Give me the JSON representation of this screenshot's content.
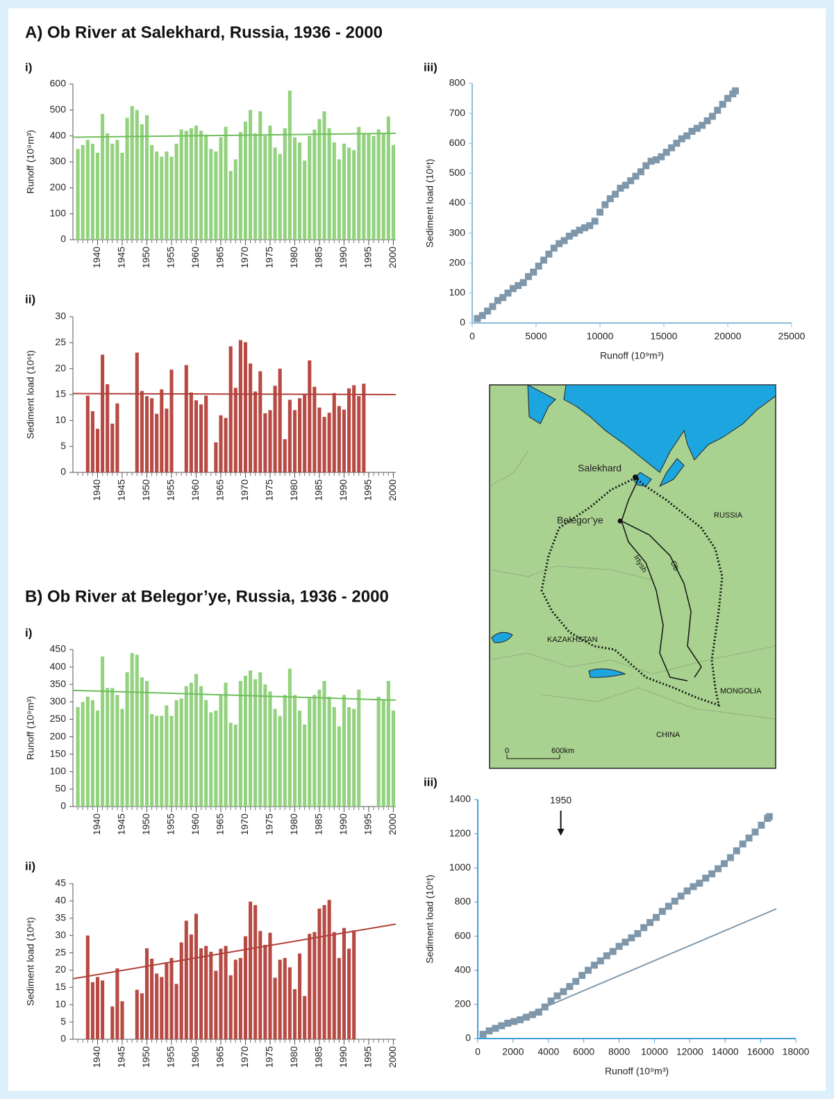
{
  "sections": [
    "A) Ob River at Salekhard, Russia, 1936 - 2000",
    "B) Ob River at Belegor’ye, Russia, 1936 - 2000"
  ],
  "chart_data": [
    {
      "type": "bar",
      "title": "i)",
      "ylabel": "Runoff (10⁹m³)",
      "color": "#93d27f",
      "trend_color": "#6fbf5c",
      "x": [
        1936,
        1937,
        1938,
        1939,
        1940,
        1941,
        1942,
        1943,
        1944,
        1945,
        1946,
        1947,
        1948,
        1949,
        1950,
        1951,
        1952,
        1953,
        1954,
        1955,
        1956,
        1957,
        1958,
        1959,
        1960,
        1961,
        1962,
        1963,
        1964,
        1965,
        1966,
        1967,
        1968,
        1969,
        1970,
        1971,
        1972,
        1973,
        1974,
        1975,
        1976,
        1977,
        1978,
        1979,
        1980,
        1981,
        1982,
        1983,
        1984,
        1985,
        1986,
        1987,
        1988,
        1989,
        1990,
        1991,
        1992,
        1993,
        1994,
        1995,
        1996,
        1997,
        1998,
        1999,
        2000
      ],
      "values": [
        350,
        365,
        385,
        370,
        335,
        485,
        410,
        370,
        385,
        335,
        470,
        515,
        500,
        445,
        480,
        365,
        340,
        320,
        340,
        320,
        370,
        425,
        420,
        430,
        440,
        420,
        405,
        350,
        340,
        395,
        435,
        265,
        310,
        415,
        455,
        500,
        410,
        495,
        400,
        440,
        355,
        330,
        430,
        575,
        395,
        375,
        305,
        400,
        425,
        465,
        495,
        430,
        375,
        310,
        370,
        355,
        345,
        435,
        410,
        410,
        400,
        425,
        410,
        475,
        365
      ],
      "trend": {
        "x": [
          1935,
          2000.5
        ],
        "values": [
          395,
          410
        ]
      },
      "xlim": [
        1935,
        2000.5
      ],
      "xticks": [
        1940,
        1945,
        1950,
        1955,
        1960,
        1965,
        1970,
        1975,
        1980,
        1985,
        1990,
        1995,
        2000
      ],
      "ylim": [
        0,
        600
      ],
      "yticks": [
        0,
        100,
        200,
        300,
        400,
        500,
        600
      ]
    },
    {
      "type": "bar",
      "title": "ii)",
      "ylabel": "Sediment load (10⁶t)",
      "color": "#b84a44",
      "trend_color": "#b0403a",
      "x": [
        1936,
        1937,
        1938,
        1939,
        1940,
        1941,
        1942,
        1943,
        1944,
        1945,
        1946,
        1947,
        1948,
        1949,
        1950,
        1951,
        1952,
        1953,
        1954,
        1955,
        1956,
        1957,
        1958,
        1959,
        1960,
        1961,
        1962,
        1963,
        1964,
        1965,
        1966,
        1967,
        1968,
        1969,
        1970,
        1971,
        1972,
        1973,
        1974,
        1975,
        1976,
        1977,
        1978,
        1979,
        1980,
        1981,
        1982,
        1983,
        1984,
        1985,
        1986,
        1987,
        1988,
        1989,
        1990,
        1991,
        1992,
        1993,
        1994,
        1995,
        1996,
        1997,
        1998,
        1999,
        2000
      ],
      "values": [
        null,
        null,
        14.8,
        11.8,
        8.4,
        22.7,
        17.0,
        9.4,
        13.3,
        null,
        null,
        null,
        23.1,
        15.7,
        14.7,
        14.3,
        11.3,
        16.0,
        12.3,
        19.8,
        null,
        null,
        20.7,
        15.4,
        13.9,
        13.1,
        14.8,
        null,
        5.8,
        11.0,
        10.5,
        24.3,
        16.3,
        25.5,
        25.1,
        21.0,
        15.6,
        19.5,
        11.4,
        12.0,
        16.7,
        20.0,
        6.4,
        14.0,
        12.0,
        14.3,
        15.0,
        21.6,
        16.5,
        12.5,
        10.7,
        11.5,
        15.3,
        12.8,
        12.1,
        16.2,
        16.8,
        14.7,
        17.1,
        null,
        null,
        null,
        null,
        null,
        null
      ],
      "trend": {
        "x": [
          1935,
          2000.5
        ],
        "values": [
          15.2,
          15.0
        ]
      },
      "xlim": [
        1935,
        2000.5
      ],
      "xticks": [
        1940,
        1945,
        1950,
        1955,
        1960,
        1965,
        1970,
        1975,
        1980,
        1985,
        1990,
        1995,
        2000
      ],
      "ylim": [
        0,
        30
      ],
      "yticks": [
        0,
        5,
        10,
        15,
        20,
        25,
        30
      ]
    },
    {
      "type": "scatter",
      "title": "iii)",
      "xlabel": "Runoff (10⁹m³)",
      "ylabel": "Sediment load (10⁶t)",
      "color": "#7f97aa",
      "axis_color": "#8cbcdc",
      "x": [
        400,
        800,
        1200,
        1600,
        2000,
        2400,
        2800,
        3200,
        3600,
        4000,
        4400,
        4800,
        5200,
        5600,
        6000,
        6400,
        6800,
        7200,
        7600,
        8000,
        8400,
        8800,
        9200,
        9600,
        10000,
        10400,
        10800,
        11200,
        11600,
        12000,
        12400,
        12800,
        13200,
        13600,
        14000,
        14400,
        14800,
        15200,
        15600,
        16000,
        16400,
        16800,
        17200,
        17600,
        18000,
        18400,
        18800,
        19200,
        19600,
        20000,
        20400,
        20600
      ],
      "values": [
        15,
        25,
        40,
        55,
        75,
        85,
        100,
        115,
        125,
        135,
        155,
        170,
        190,
        210,
        230,
        250,
        265,
        275,
        290,
        300,
        310,
        318,
        325,
        340,
        370,
        395,
        415,
        430,
        450,
        460,
        475,
        490,
        505,
        525,
        540,
        545,
        555,
        570,
        585,
        600,
        615,
        625,
        640,
        650,
        660,
        675,
        690,
        710,
        730,
        750,
        765,
        775
      ],
      "xlim": [
        0,
        25000
      ],
      "xticks": [
        0,
        5000,
        10000,
        15000,
        20000,
        25000
      ],
      "ylim": [
        0,
        800
      ],
      "yticks": [
        0,
        100,
        200,
        300,
        400,
        500,
        600,
        700,
        800
      ]
    },
    {
      "type": "bar",
      "title": "i)",
      "ylabel": "Runoff (10⁹m³)",
      "color": "#93d27f",
      "trend_color": "#6fbf5c",
      "x": [
        1936,
        1937,
        1938,
        1939,
        1940,
        1941,
        1942,
        1943,
        1944,
        1945,
        1946,
        1947,
        1948,
        1949,
        1950,
        1951,
        1952,
        1953,
        1954,
        1955,
        1956,
        1957,
        1958,
        1959,
        1960,
        1961,
        1962,
        1963,
        1964,
        1965,
        1966,
        1967,
        1968,
        1969,
        1970,
        1971,
        1972,
        1973,
        1974,
        1975,
        1976,
        1977,
        1978,
        1979,
        1980,
        1981,
        1982,
        1983,
        1984,
        1985,
        1986,
        1987,
        1988,
        1989,
        1990,
        1991,
        1992,
        1993,
        1994,
        1995,
        1996,
        1997,
        1998,
        1999,
        2000
      ],
      "values": [
        285,
        300,
        315,
        305,
        275,
        430,
        340,
        340,
        320,
        280,
        385,
        440,
        435,
        370,
        360,
        265,
        260,
        260,
        290,
        260,
        305,
        310,
        345,
        355,
        380,
        345,
        305,
        270,
        275,
        320,
        355,
        240,
        235,
        360,
        375,
        390,
        365,
        385,
        350,
        330,
        280,
        260,
        320,
        395,
        320,
        275,
        235,
        310,
        320,
        335,
        360,
        315,
        285,
        230,
        320,
        285,
        280,
        335,
        null,
        null,
        null,
        315,
        305,
        360,
        275
      ],
      "trend": {
        "x": [
          1935,
          2000.5
        ],
        "values": [
          333,
          305
        ]
      },
      "xlim": [
        1935,
        2000.5
      ],
      "xticks": [
        1940,
        1945,
        1950,
        1955,
        1960,
        1965,
        1970,
        1975,
        1980,
        1985,
        1990,
        1995,
        2000
      ],
      "ylim": [
        0,
        450
      ],
      "yticks": [
        0,
        50,
        100,
        150,
        200,
        250,
        300,
        350,
        400,
        450
      ]
    },
    {
      "type": "bar",
      "title": "ii)",
      "ylabel": "Sediment load (10⁶t)",
      "color": "#b84a44",
      "trend_color": "#b0403a",
      "x": [
        1936,
        1937,
        1938,
        1939,
        1940,
        1941,
        1942,
        1943,
        1944,
        1945,
        1946,
        1947,
        1948,
        1949,
        1950,
        1951,
        1952,
        1953,
        1954,
        1955,
        1956,
        1957,
        1958,
        1959,
        1960,
        1961,
        1962,
        1963,
        1964,
        1965,
        1966,
        1967,
        1968,
        1969,
        1970,
        1971,
        1972,
        1973,
        1974,
        1975,
        1976,
        1977,
        1978,
        1979,
        1980,
        1981,
        1982,
        1983,
        1984,
        1985,
        1986,
        1987,
        1988,
        1989,
        1990,
        1991,
        1992,
        1993,
        1994,
        1995,
        1996,
        1997,
        1998,
        1999,
        2000
      ],
      "values": [
        null,
        null,
        30,
        16.5,
        18,
        17,
        null,
        9.5,
        20.5,
        11,
        null,
        null,
        14.3,
        13.3,
        26.3,
        23.3,
        19,
        18,
        22.3,
        23.5,
        16,
        28,
        34.3,
        30.3,
        36.3,
        26.3,
        27,
        25.3,
        19.8,
        26.2,
        27,
        18.5,
        23,
        23.5,
        29.8,
        39.8,
        38.8,
        31.3,
        27.3,
        30.8,
        17.8,
        23,
        23.5,
        20.8,
        14.5,
        24.8,
        12.5,
        30.5,
        31,
        37.8,
        38.8,
        40.3,
        31,
        23.5,
        32.2,
        26.2,
        31.5,
        null,
        null,
        null,
        null,
        null,
        null,
        null,
        null
      ],
      "trend": {
        "x": [
          1935,
          2000.5
        ],
        "values": [
          17.5,
          33.3
        ]
      },
      "xlim": [
        1935,
        2000.5
      ],
      "xticks": [
        1940,
        1945,
        1950,
        1955,
        1960,
        1965,
        1970,
        1975,
        1980,
        1985,
        1990,
        1995,
        2000
      ],
      "ylim": [
        0,
        45
      ],
      "yticks": [
        0,
        5,
        10,
        15,
        20,
        25,
        30,
        35,
        40,
        45
      ]
    },
    {
      "type": "scatter",
      "title": "iii)",
      "xlabel": "Runoff (10⁹m³)",
      "ylabel": "Sediment load (10⁶t)",
      "color": "#7f97aa",
      "axis_color": "#3f9ed6",
      "x": [
        300,
        650,
        1000,
        1350,
        1700,
        2050,
        2400,
        2750,
        3100,
        3450,
        3800,
        4150,
        4500,
        4850,
        5200,
        5550,
        5900,
        6250,
        6600,
        6950,
        7300,
        7650,
        8000,
        8350,
        8700,
        9050,
        9400,
        9750,
        10100,
        10450,
        10800,
        11150,
        11500,
        11850,
        12200,
        12550,
        12900,
        13250,
        13600,
        13950,
        14300,
        14650,
        15000,
        15350,
        15700,
        16050,
        16400,
        16500
      ],
      "values": [
        25,
        45,
        60,
        75,
        90,
        100,
        110,
        125,
        140,
        155,
        185,
        220,
        250,
        275,
        305,
        335,
        370,
        400,
        430,
        455,
        485,
        510,
        540,
        565,
        590,
        615,
        650,
        680,
        710,
        745,
        775,
        805,
        835,
        865,
        890,
        910,
        940,
        965,
        995,
        1025,
        1060,
        1100,
        1140,
        1175,
        1210,
        1250,
        1290,
        1300
      ],
      "line": {
        "x": [
          300,
          16900
        ],
        "values": [
          30,
          760
        ]
      },
      "annotations": [
        {
          "text": "1950",
          "x": 4700
        }
      ],
      "xlim": [
        0,
        18000
      ],
      "xticks": [
        0,
        2000,
        4000,
        6000,
        8000,
        10000,
        12000,
        14000,
        16000,
        18000
      ],
      "ylim": [
        0,
        1400
      ],
      "yticks": [
        0,
        200,
        400,
        600,
        800,
        1000,
        1200,
        1400
      ]
    }
  ],
  "map": {
    "labels": [
      "Salekhard",
      "Belegor’ye",
      "RUSSIA",
      "Irtysh",
      "Ob",
      "KAZAKHSTAN",
      "MONGOLIA",
      "CHINA"
    ],
    "scale": [
      "0",
      "600km"
    ]
  }
}
